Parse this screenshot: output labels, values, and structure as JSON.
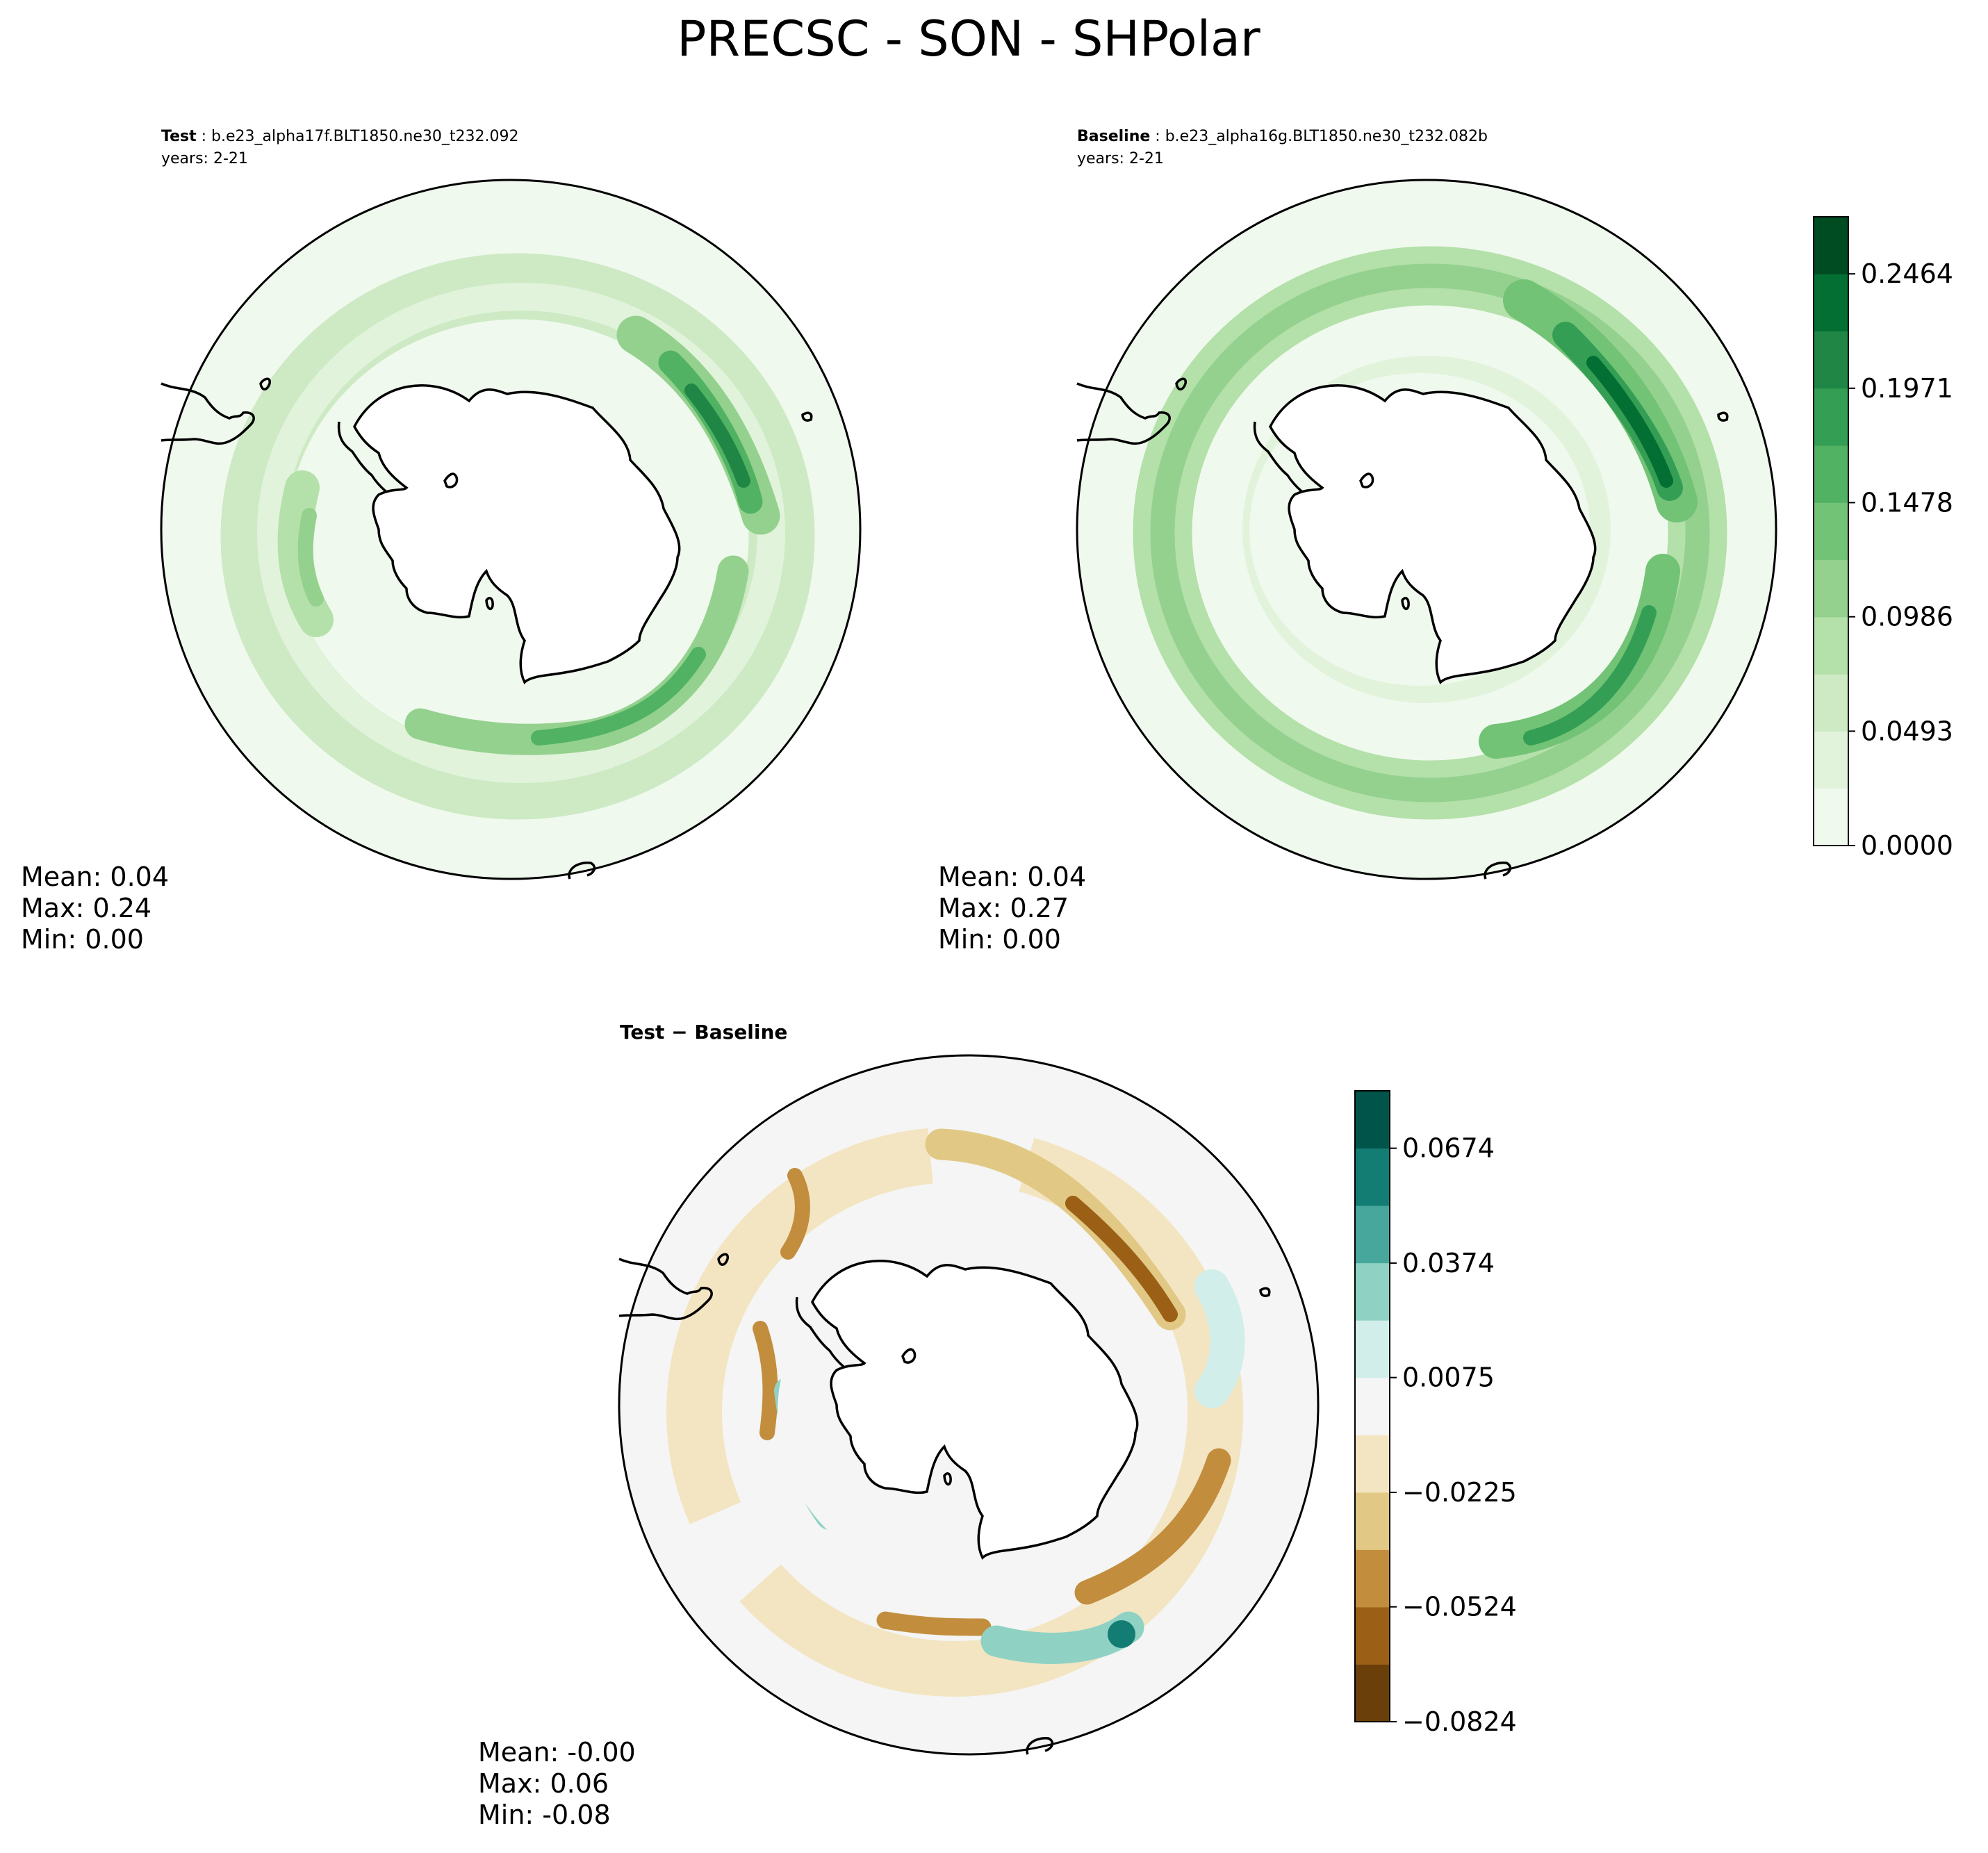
{
  "suptitle": "PRECSC - SON - SHPolar",
  "panels": {
    "test": {
      "label": "Test",
      "case": "b.e23_alpha17f.BLT1850.ne30_t232.092",
      "years": "years: 2-21",
      "stats": {
        "mean": "Mean:  0.04",
        "max": "Max:  0.24",
        "min": "Min:  0.00"
      }
    },
    "baseline": {
      "label": "Baseline",
      "case": "b.e23_alpha16g.BLT1850.ne30_t232.082b",
      "years": "years: 2-21",
      "stats": {
        "mean": "Mean:  0.04",
        "max": "Max:  0.27",
        "min": "Min:  0.00"
      }
    },
    "diff": {
      "label": "Test − Baseline",
      "stats": {
        "mean": "Mean: -0.00",
        "max": "Max:  0.06",
        "min": "Min: -0.08"
      }
    }
  },
  "chart_data": [
    {
      "type": "heatmap",
      "panel": "test",
      "projection": "south-polar-stereographic",
      "mean": 0.04,
      "max": 0.24,
      "min": 0.0,
      "colormap": "Greens",
      "colorbar": {
        "ticks": [
          0.0,
          0.0493,
          0.0986,
          0.1478,
          0.1971,
          0.2464
        ],
        "tick_labels": [
          "0.0000",
          "0.0493",
          "0.0986",
          "0.1478",
          "0.1971",
          "0.2464"
        ],
        "vmin": 0.0,
        "vmax": 0.271,
        "colors": [
          "#f0f9ee",
          "#e2f3dc",
          "#cdeac5",
          "#b4e0aa",
          "#94d18e",
          "#73c377",
          "#51b263",
          "#349f54",
          "#1f8645",
          "#046f32",
          "#004c22"
        ]
      }
    },
    {
      "type": "heatmap",
      "panel": "baseline",
      "projection": "south-polar-stereographic",
      "mean": 0.04,
      "max": 0.27,
      "min": 0.0,
      "colormap": "Greens"
    },
    {
      "type": "heatmap",
      "panel": "diff",
      "projection": "south-polar-stereographic",
      "mean": -0.0,
      "max": 0.06,
      "min": -0.08,
      "colormap": "BrBG",
      "colorbar": {
        "ticks": [
          -0.0824,
          -0.0524,
          -0.0225,
          0.0075,
          0.0374,
          0.0674
        ],
        "tick_labels": [
          "−0.0824",
          "−0.0524",
          "−0.0225",
          "0.0075",
          "0.0374",
          "0.0674"
        ],
        "vmin": -0.0824,
        "vmax": 0.0824,
        "colors": [
          "#6a3f0a",
          "#9b5f16",
          "#c38d3e",
          "#e1c885",
          "#f3e5c2",
          "#f4f5f4",
          "#d2eeea",
          "#8fd2c4",
          "#48a79c",
          "#137c73",
          "#01544a"
        ]
      }
    }
  ]
}
